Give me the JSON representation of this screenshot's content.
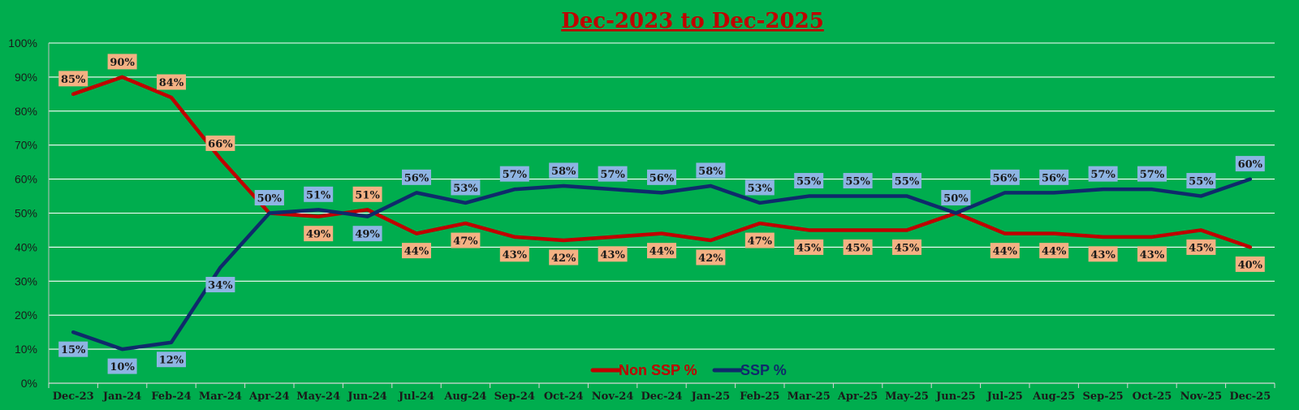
{
  "chart_data": {
    "type": "line",
    "title": "Dec-2023 to Dec-2025",
    "categories": [
      "Dec-23",
      "Jan-24",
      "Feb-24",
      "Mar-24",
      "Apr-24",
      "May-24",
      "Jun-24",
      "Jul-24",
      "Aug-24",
      "Sep-24",
      "Oct-24",
      "Nov-24",
      "Dec-24",
      "Jan-25",
      "Feb-25",
      "Mar-25",
      "Apr-25",
      "May-25",
      "Jun-25",
      "Jul-25",
      "Aug-25",
      "Sep-25",
      "Oct-25",
      "Nov-25",
      "Dec-25"
    ],
    "ylim": [
      0,
      100
    ],
    "yticks": [
      0,
      10,
      20,
      30,
      40,
      50,
      60,
      70,
      80,
      90,
      100
    ],
    "ytick_suffix": "%",
    "grid": true,
    "legend_position": "bottom-center",
    "series": [
      {
        "name": "Non SSP %",
        "color": "#c00000",
        "label_bg": "#f4b183",
        "values": [
          85,
          90,
          84,
          66,
          50,
          49,
          51,
          44,
          47,
          43,
          42,
          43,
          44,
          42,
          47,
          45,
          45,
          45,
          50,
          44,
          44,
          43,
          43,
          45,
          40
        ],
        "labels": [
          "85%",
          "90%",
          "84%",
          "66%",
          "50%",
          "49%",
          "51%",
          "44%",
          "47%",
          "43%",
          "42%",
          "43%",
          "44%",
          "42%",
          "47%",
          "45%",
          "45%",
          "45%",
          "50%",
          "44%",
          "44%",
          "43%",
          "43%",
          "45%",
          "40%"
        ]
      },
      {
        "name": "SSP %",
        "color": "#0f2a6b",
        "label_bg": "#8eb4e3",
        "values": [
          15,
          10,
          12,
          34,
          50,
          51,
          49,
          56,
          53,
          57,
          58,
          57,
          56,
          58,
          53,
          55,
          55,
          55,
          50,
          56,
          56,
          57,
          57,
          55,
          60
        ],
        "labels": [
          "15%",
          "10%",
          "12%",
          "34%",
          "50%",
          "51%",
          "49%",
          "56%",
          "53%",
          "57%",
          "58%",
          "57%",
          "56%",
          "58%",
          "53%",
          "55%",
          "55%",
          "55%",
          "50%",
          "56%",
          "56%",
          "57%",
          "57%",
          "55%",
          "60%"
        ]
      }
    ]
  }
}
